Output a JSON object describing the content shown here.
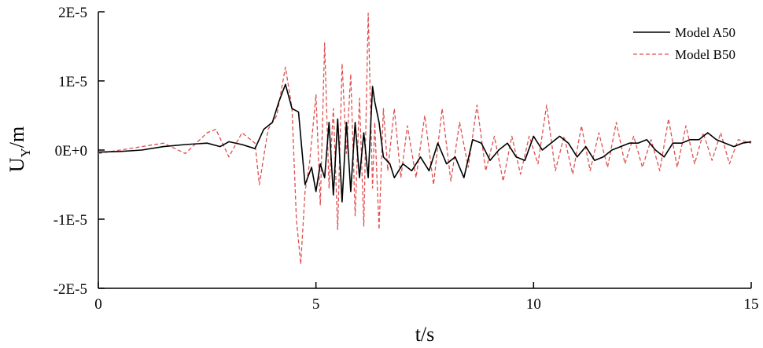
{
  "chart_data": {
    "type": "line",
    "title": "",
    "xlabel": "t/s",
    "ylabel_main": "U",
    "ylabel_sub": "Y",
    "ylabel_unit": "/m",
    "xlim": [
      0,
      15
    ],
    "ylim": [
      -2e-05,
      2e-05
    ],
    "xticks": [
      0,
      5,
      10,
      15
    ],
    "xtick_labels": [
      "0",
      "5",
      "10",
      "15"
    ],
    "yticks": [
      -2e-05,
      -1e-05,
      0,
      1e-05,
      2e-05
    ],
    "ytick_labels": [
      "-2E-5",
      "-1E-5",
      "0E+0",
      "1E-5",
      "2E-5"
    ],
    "grid": false,
    "legend_position": "top-right",
    "series": [
      {
        "name": "Model A50",
        "color": "#000000",
        "dash": "solid",
        "x": [
          0,
          0.5,
          1,
          1.5,
          2,
          2.5,
          2.8,
          3,
          3.3,
          3.6,
          3.8,
          4,
          4.15,
          4.3,
          4.45,
          4.6,
          4.75,
          4.9,
          5,
          5.1,
          5.2,
          5.3,
          5.4,
          5.5,
          5.6,
          5.7,
          5.8,
          5.9,
          6,
          6.1,
          6.2,
          6.3,
          6.35,
          6.45,
          6.55,
          6.7,
          6.8,
          7,
          7.2,
          7.4,
          7.6,
          7.8,
          8,
          8.2,
          8.4,
          8.6,
          8.8,
          9,
          9.2,
          9.4,
          9.6,
          9.8,
          10,
          10.2,
          10.4,
          10.6,
          10.8,
          11,
          11.2,
          11.4,
          11.6,
          11.8,
          12,
          12.2,
          12.4,
          12.6,
          12.8,
          13,
          13.2,
          13.4,
          13.6,
          13.8,
          14,
          14.2,
          14.4,
          14.6,
          14.8,
          15
        ],
        "y": [
          -3e-07,
          -2e-07,
          0,
          5e-07,
          8e-07,
          1e-06,
          5e-07,
          1.2e-06,
          8e-07,
          2e-07,
          3e-06,
          4e-06,
          7e-06,
          9.5e-06,
          6e-06,
          5.5e-06,
          -5e-06,
          -2.5e-06,
          -6e-06,
          -2e-06,
          -4e-06,
          4e-06,
          -6.5e-06,
          4.5e-06,
          -7.5e-06,
          4e-06,
          -6e-06,
          4e-06,
          -4e-06,
          2.5e-06,
          -4e-06,
          9.2e-06,
          7e-06,
          4e-06,
          -1e-06,
          -2e-06,
          -4e-06,
          -2e-06,
          -3e-06,
          -1e-06,
          -3e-06,
          1e-06,
          -2e-06,
          -1e-06,
          -4e-06,
          1.5e-06,
          1e-06,
          -1.5e-06,
          0,
          1e-06,
          -1e-06,
          -1.5e-06,
          2e-06,
          0,
          1e-06,
          2e-06,
          1e-06,
          -1e-06,
          5e-07,
          -1.5e-06,
          -1e-06,
          0,
          5e-07,
          1e-06,
          1e-06,
          1.5e-06,
          0,
          -1e-06,
          1e-06,
          1e-06,
          1.5e-06,
          1.5e-06,
          2.5e-06,
          1.5e-06,
          1e-06,
          5e-07,
          1e-06,
          1.2e-06
        ]
      },
      {
        "name": "Model B50",
        "color": "#e05050",
        "dash": "dashed",
        "x": [
          0,
          0.5,
          1,
          1.5,
          2,
          2.5,
          2.7,
          3,
          3.3,
          3.6,
          3.7,
          3.9,
          4.1,
          4.3,
          4.45,
          4.55,
          4.65,
          4.75,
          4.85,
          5,
          5.1,
          5.2,
          5.3,
          5.4,
          5.5,
          5.6,
          5.7,
          5.8,
          5.9,
          6,
          6.1,
          6.2,
          6.3,
          6.35,
          6.45,
          6.55,
          6.65,
          6.8,
          6.95,
          7.1,
          7.3,
          7.5,
          7.7,
          7.9,
          8.1,
          8.3,
          8.5,
          8.7,
          8.9,
          9.1,
          9.3,
          9.5,
          9.7,
          9.9,
          10.1,
          10.3,
          10.5,
          10.7,
          10.9,
          11.1,
          11.3,
          11.5,
          11.7,
          11.9,
          12.1,
          12.3,
          12.5,
          12.7,
          12.9,
          13.1,
          13.3,
          13.5,
          13.7,
          13.9,
          14.1,
          14.3,
          14.5,
          14.7,
          15
        ],
        "y": [
          -5e-07,
          0,
          5e-07,
          1e-06,
          -5e-07,
          2.5e-06,
          3e-06,
          -1e-06,
          2.5e-06,
          1e-06,
          -5e-06,
          3e-06,
          5e-06,
          1.2e-05,
          6e-06,
          -1e-05,
          -1.65e-05,
          -6e-06,
          -2e-06,
          8e-06,
          -8e-06,
          1.55e-05,
          -5.5e-06,
          6e-06,
          -1.15e-05,
          1.25e-05,
          -5e-07,
          1.1e-05,
          -9.5e-06,
          7.5e-06,
          -1.1e-05,
          1.98e-05,
          -5.5e-06,
          4e-06,
          -1.15e-05,
          6e-06,
          -3e-06,
          6e-06,
          -4e-06,
          3.5e-06,
          -4e-06,
          5e-06,
          -5e-06,
          6e-06,
          -4.5e-06,
          4e-06,
          -2.5e-06,
          6.5e-06,
          -3e-06,
          2e-06,
          -4.5e-06,
          2e-06,
          -3.5e-06,
          2e-06,
          -2e-06,
          6.5e-06,
          -3e-06,
          2e-06,
          -3.5e-06,
          3.5e-06,
          -3e-06,
          2.5e-06,
          -2.5e-06,
          4e-06,
          -2e-06,
          2e-06,
          -2.5e-06,
          1.5e-06,
          -3e-06,
          4.5e-06,
          -2.5e-06,
          3.5e-06,
          -2e-06,
          2.5e-06,
          -1.5e-06,
          2.5e-06,
          -2e-06,
          1.5e-06,
          1e-06
        ]
      }
    ]
  }
}
